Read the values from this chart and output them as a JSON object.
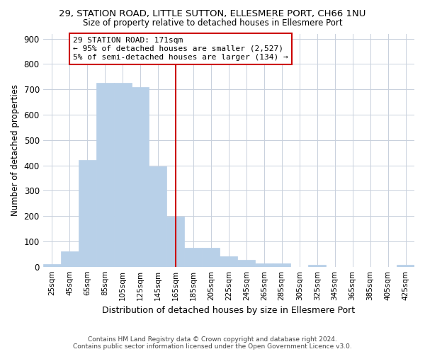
{
  "title": "29, STATION ROAD, LITTLE SUTTON, ELLESMERE PORT, CH66 1NU",
  "subtitle": "Size of property relative to detached houses in Ellesmere Port",
  "xlabel": "Distribution of detached houses by size in Ellesmere Port",
  "ylabel": "Number of detached properties",
  "bar_color": "#b8d0e8",
  "bar_edgecolor": "#b8d0e8",
  "background_color": "#ffffff",
  "grid_color": "#c8d0dc",
  "annotation_box_color": "#cc0000",
  "vline_color": "#cc0000",
  "footer_line1": "Contains HM Land Registry data © Crown copyright and database right 2024.",
  "footer_line2": "Contains public sector information licensed under the Open Government Licence v3.0.",
  "annotation_title": "29 STATION ROAD: 171sqm",
  "annotation_line2": "← 95% of detached houses are smaller (2,527)",
  "annotation_line3": "5% of semi-detached houses are larger (134) →",
  "vline_position": 7,
  "categories": [
    "25sqm",
    "45sqm",
    "65sqm",
    "85sqm",
    "105sqm",
    "125sqm",
    "145sqm",
    "165sqm",
    "185sqm",
    "205sqm",
    "225sqm",
    "245sqm",
    "265sqm",
    "285sqm",
    "305sqm",
    "325sqm",
    "345sqm",
    "365sqm",
    "385sqm",
    "405sqm",
    "425sqm"
  ],
  "values": [
    10,
    60,
    420,
    727,
    727,
    710,
    395,
    198,
    75,
    75,
    40,
    28,
    12,
    12,
    0,
    8,
    0,
    0,
    0,
    0,
    8
  ],
  "ylim": [
    0,
    920
  ],
  "yticks": [
    0,
    100,
    200,
    300,
    400,
    500,
    600,
    700,
    800,
    900
  ]
}
